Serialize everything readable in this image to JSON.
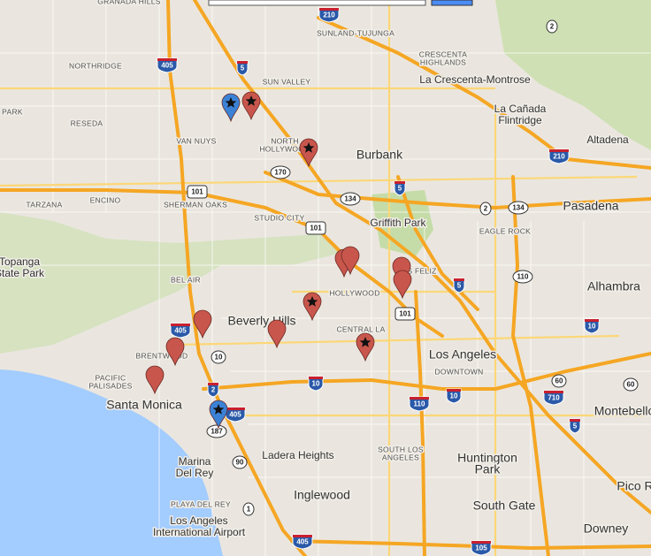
{
  "map": {
    "labels": [
      "GRANADA HILLS",
      "SUNLAND-TUJUNGA",
      [
        "CRESCENTA",
        "HIGHLANDS"
      ],
      "NORTHRIDGE",
      "SUN VALLEY",
      "La Crescenta-Montrose",
      "PARK",
      "RESEDA",
      [
        "La Cañada",
        "Flintridge"
      ],
      "VAN NUYS",
      [
        "NORTH",
        "HOLLYWOOD"
      ],
      "Altadena",
      "Burbank",
      "ENCINO",
      "TARZANA",
      "SHERMAN OAKS",
      "Pasadena",
      "STUDIO CITY",
      "Griffith Park",
      "EAGLE ROCK",
      [
        "Topanga",
        "State Park"
      ],
      "LOS FELIZ",
      "BEL AIR",
      "HOLLYWOOD",
      "Alhambra",
      "Beverly Hills",
      "CENTRAL LA",
      "BRENTWOOD",
      "Los Angeles",
      "DOWNTOWN",
      [
        "PACIFIC",
        "PALISADES"
      ],
      "Santa Monica",
      "Montebello",
      [
        "SOUTH LOS",
        "ANGELES"
      ],
      "Ladera Heights",
      [
        "Huntington",
        "Park"
      ],
      [
        "Marina",
        "Del Rey"
      ],
      "Pico R",
      "Inglewood",
      "PLAYA DEL REY",
      "South Gate",
      [
        "Los Angeles",
        "International Airport"
      ],
      "Downey"
    ],
    "highways": [
      "210",
      "2",
      "405",
      "5",
      "210",
      "170",
      "101",
      "5",
      "134",
      "2",
      "134",
      "101",
      "110",
      "5",
      "101",
      "405",
      "10",
      "2",
      "10",
      "60",
      "60",
      "710",
      "10",
      "110",
      "10",
      "405",
      "5",
      "187",
      "90",
      "1",
      "405",
      "105"
    ]
  }
}
